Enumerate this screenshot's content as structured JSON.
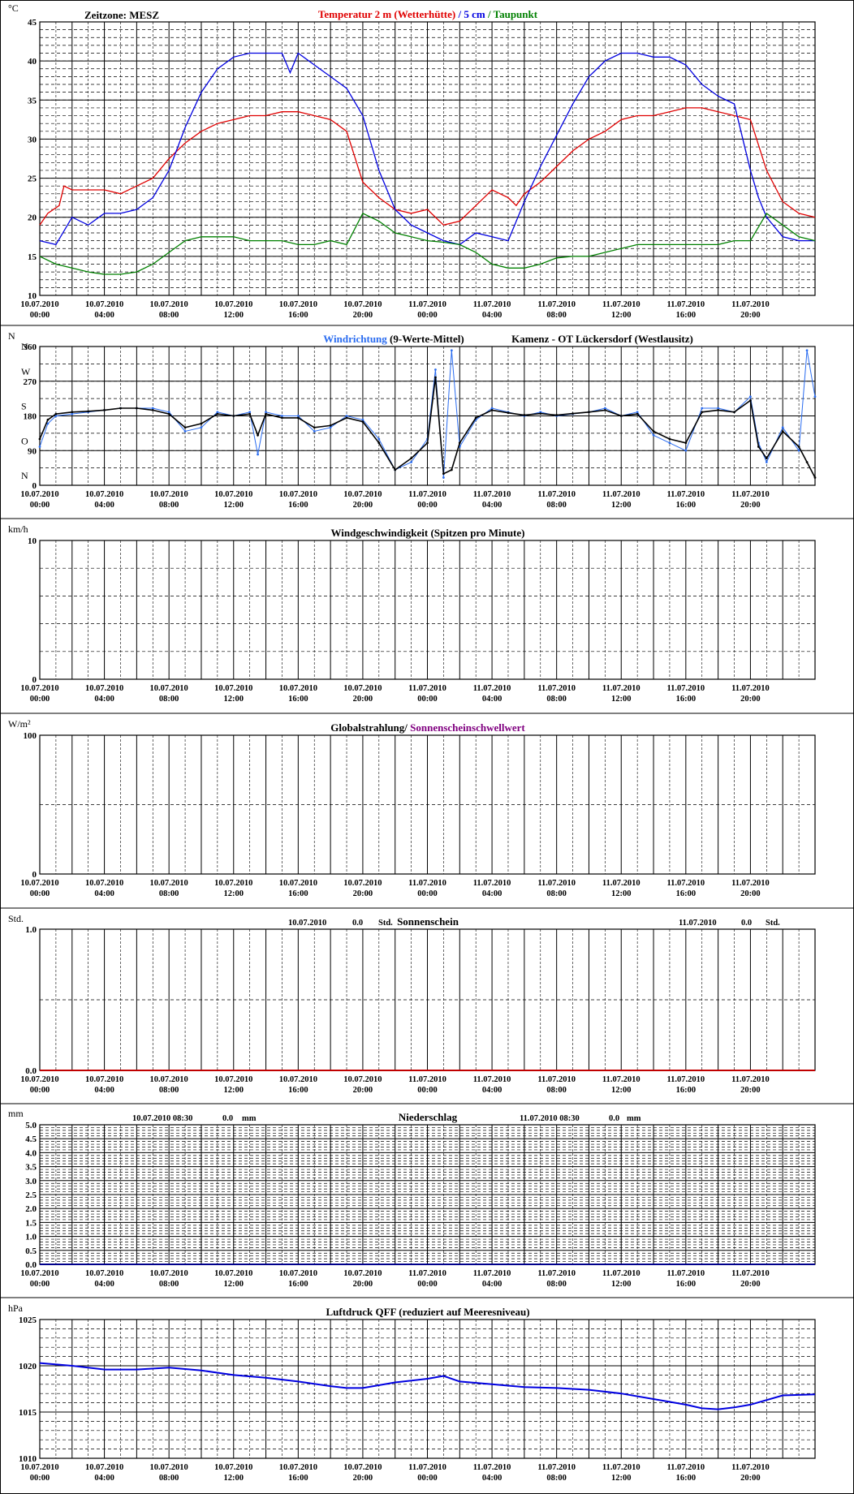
{
  "x_ticks": [
    [
      "10.07.2010",
      "00:00"
    ],
    [
      "10.07.2010",
      "04:00"
    ],
    [
      "10.07.2010",
      "08:00"
    ],
    [
      "10.07.2010",
      "12:00"
    ],
    [
      "10.07.2010",
      "16:00"
    ],
    [
      "10.07.2010",
      "20:00"
    ],
    [
      "11.07.2010",
      "00:00"
    ],
    [
      "11.07.2010",
      "04:00"
    ],
    [
      "11.07.2010",
      "08:00"
    ],
    [
      "11.07.2010",
      "12:00"
    ],
    [
      "11.07.2010",
      "16:00"
    ],
    [
      "11.07.2010",
      "20:00"
    ]
  ],
  "colors": {
    "red": "#e00000",
    "blue": "#0000e0",
    "green": "#008000",
    "lightblue": "#2a6cf0",
    "purple": "#800080",
    "darkred": "#c00000"
  },
  "chart_data": [
    {
      "type": "line",
      "unit": "°C",
      "timezone": "Zeitzone: MESZ",
      "title_parts": [
        {
          "text": "Temperatur 2 m (Wetterhütte)",
          "color": "#e00000"
        },
        {
          "text": " / ",
          "color": "#0000e0"
        },
        {
          "text": "5 cm",
          "color": "#0000e0"
        },
        {
          "text": " / ",
          "color": "#008000"
        },
        {
          "text": "Taupunkt",
          "color": "#008000"
        }
      ],
      "ylim": [
        10,
        45
      ],
      "yticks": [
        "10",
        "15",
        "20",
        "25",
        "30",
        "35",
        "40",
        "45"
      ],
      "x_hours": [
        0,
        48
      ],
      "series": [
        {
          "name": "Temperatur 2 m (Wetterhütte)",
          "color": "#e00000",
          "x": [
            0,
            0.5,
            1.2,
            1.5,
            2,
            3,
            4,
            5,
            6,
            7,
            8,
            9,
            10,
            11,
            12,
            13,
            14,
            15,
            16,
            17,
            18,
            19,
            20,
            21,
            22,
            23,
            24,
            25,
            26,
            27,
            28,
            29,
            29.5,
            30,
            31,
            32,
            33,
            34,
            35,
            36,
            37,
            38,
            39,
            40,
            41,
            42,
            43,
            44,
            45,
            46,
            47,
            48
          ],
          "y": [
            19,
            20.5,
            21.5,
            24,
            23.5,
            23.5,
            23.5,
            23,
            24,
            25,
            27.5,
            29.5,
            31,
            32,
            32.5,
            33,
            33,
            33.5,
            33.5,
            33,
            32.5,
            31,
            24.5,
            22.5,
            21,
            20.5,
            21,
            19,
            19.5,
            21.5,
            23.5,
            22.5,
            21.5,
            23,
            24.5,
            26.5,
            28.5,
            30,
            31,
            32.5,
            33,
            33,
            33.5,
            34,
            34,
            33.5,
            33,
            32.5,
            26,
            22,
            20.5,
            20
          ]
        },
        {
          "name": "5 cm",
          "color": "#0000e0",
          "x": [
            0,
            1,
            2,
            3,
            4,
            5,
            6,
            7,
            8,
            9,
            10,
            11,
            12,
            13,
            14,
            15,
            15.5,
            16,
            17,
            18,
            19,
            20,
            21,
            22,
            23,
            24,
            25,
            26,
            27,
            28,
            29,
            30,
            31,
            32,
            33,
            34,
            35,
            36,
            37,
            38,
            39,
            40,
            41,
            42,
            43,
            44,
            44.5,
            45,
            46,
            47,
            48
          ],
          "y": [
            17,
            16.5,
            20,
            19,
            20.5,
            20.5,
            21,
            22.5,
            26,
            31.5,
            36,
            39,
            40.5,
            41,
            41,
            41,
            38.5,
            41,
            39.5,
            38,
            36.5,
            33,
            26,
            21,
            19,
            18,
            17,
            16.5,
            18,
            17.5,
            17,
            22,
            26.5,
            30.5,
            34.5,
            38,
            40,
            41,
            41,
            40.5,
            40.5,
            39.5,
            37,
            35.5,
            34.5,
            26,
            22.5,
            20,
            17.5,
            17,
            17
          ]
        },
        {
          "name": "Taupunkt",
          "color": "#008000",
          "x": [
            0,
            1,
            2,
            3,
            4,
            5,
            6,
            7,
            8,
            9,
            10,
            11,
            12,
            13,
            14,
            15,
            16,
            17,
            18,
            19,
            20,
            21,
            22,
            23,
            24,
            25,
            26,
            27,
            28,
            29,
            30,
            31,
            32,
            33,
            34,
            35,
            36,
            37,
            38,
            39,
            40,
            41,
            42,
            43,
            44,
            45,
            46,
            47,
            48
          ],
          "y": [
            15,
            14,
            13.5,
            13,
            12.7,
            12.7,
            13,
            14,
            15.5,
            17,
            17.5,
            17.5,
            17.5,
            17,
            17,
            17,
            16.5,
            16.5,
            17,
            16.5,
            20.5,
            19.5,
            18,
            17.5,
            17,
            16.8,
            16.5,
            15.5,
            14,
            13.5,
            13.5,
            14,
            14.8,
            15,
            15,
            15.5,
            16,
            16.5,
            16.5,
            16.5,
            16.5,
            16.5,
            16.5,
            17,
            17,
            20.5,
            19,
            17.5,
            17
          ]
        }
      ]
    },
    {
      "type": "scatter",
      "unit": "N",
      "title_parts": [
        {
          "text": "Windrichtung",
          "color": "#2a6cf0"
        },
        {
          "text": " (9-Werte-Mittel)",
          "color": "#000000"
        }
      ],
      "station": "Kamenz - OT Lückersdorf (Westlausitz)",
      "ylim": [
        0,
        360
      ],
      "yticks": [
        "0",
        "90",
        "180",
        "270",
        "360"
      ],
      "dir_labels": [
        "N",
        "O",
        "S",
        "W",
        "N"
      ],
      "x_hours": [
        0,
        48
      ],
      "series": [
        {
          "name": "Windrichtung",
          "color": "#2a6cf0",
          "x": [
            0,
            0.5,
            1,
            2,
            3,
            4,
            5,
            6,
            7,
            8,
            9,
            10,
            11,
            12,
            13,
            13.5,
            14,
            15,
            16,
            17,
            18,
            19,
            20,
            21,
            22,
            23,
            24,
            24.5,
            25,
            25.5,
            26,
            27,
            28,
            29,
            30,
            31,
            32,
            33,
            34,
            35,
            36,
            37,
            38,
            39,
            40,
            41,
            42,
            43,
            44,
            44.5,
            45,
            46,
            47,
            47.5,
            48
          ],
          "y": [
            100,
            160,
            180,
            185,
            190,
            195,
            200,
            200,
            200,
            190,
            140,
            150,
            190,
            180,
            190,
            80,
            190,
            180,
            180,
            140,
            150,
            180,
            170,
            120,
            40,
            60,
            120,
            300,
            20,
            350,
            100,
            170,
            200,
            190,
            180,
            190,
            180,
            185,
            190,
            200,
            180,
            190,
            130,
            110,
            90,
            200,
            200,
            190,
            230,
            110,
            60,
            150,
            90,
            350,
            230
          ]
        },
        {
          "name": "9-Werte-Mittel",
          "color": "#000000",
          "x": [
            0,
            0.5,
            1,
            2,
            3,
            4,
            5,
            6,
            7,
            8,
            9,
            10,
            11,
            12,
            13,
            13.5,
            14,
            15,
            16,
            17,
            18,
            19,
            20,
            21,
            22,
            23,
            24,
            24.5,
            25,
            25.5,
            26,
            27,
            28,
            29,
            30,
            31,
            32,
            33,
            34,
            35,
            36,
            37,
            38,
            39,
            40,
            41,
            42,
            43,
            44,
            44.5,
            45,
            46,
            47,
            47.5,
            48
          ],
          "y": [
            120,
            170,
            185,
            190,
            192,
            195,
            200,
            200,
            195,
            185,
            150,
            160,
            185,
            180,
            185,
            130,
            185,
            175,
            175,
            150,
            155,
            175,
            165,
            110,
            40,
            70,
            110,
            280,
            30,
            40,
            110,
            175,
            195,
            188,
            182,
            186,
            182,
            186,
            190,
            195,
            180,
            185,
            140,
            120,
            110,
            190,
            195,
            190,
            220,
            100,
            70,
            140,
            100,
            60,
            20
          ]
        }
      ]
    },
    {
      "type": "bar",
      "unit": "km/h",
      "title_parts": [
        {
          "text": "Windgeschwindigkeit (Spitzen pro Minute)",
          "color": "#000000"
        }
      ],
      "ylim": [
        0,
        10
      ],
      "yticks": [
        "0",
        "10"
      ],
      "x_hours": [
        0,
        48
      ],
      "series": []
    },
    {
      "type": "area",
      "unit": "W/m²",
      "title_parts": [
        {
          "text": "Globalstrahlung/ ",
          "color": "#000000"
        },
        {
          "text": "Sonnenscheinschwellwert",
          "color": "#800080"
        }
      ],
      "ylim": [
        0,
        100
      ],
      "yticks": [
        "0",
        "100"
      ],
      "x_hours": [
        0,
        48
      ],
      "series": []
    },
    {
      "type": "bar",
      "unit": "Std.",
      "title_parts": [
        {
          "text": "Sonnenschein",
          "color": "#000000"
        }
      ],
      "daily": [
        {
          "date": "10.07.2010",
          "value": "0.0",
          "unit": "Std."
        },
        {
          "date": "11.07.2010",
          "value": "0.0",
          "unit": "Std."
        }
      ],
      "ylim": [
        0,
        1
      ],
      "yticks": [
        "0.0",
        "1.0"
      ],
      "x_hours": [
        0,
        48
      ],
      "series": [
        {
          "name": "Sonnenschein",
          "color": "#c00000",
          "x": [
            0,
            48
          ],
          "y": [
            0,
            0
          ]
        }
      ]
    },
    {
      "type": "bar",
      "unit": "mm",
      "title_parts": [
        {
          "text": "Niederschlag",
          "color": "#000000"
        }
      ],
      "daily": [
        {
          "date": "10.07.2010 08:30",
          "value": "0.0",
          "unit": "mm"
        },
        {
          "date": "11.07.2010 08:30",
          "value": "0.0",
          "unit": "mm"
        }
      ],
      "ylim": [
        0,
        5
      ],
      "yticks": [
        "0.0",
        "0.5",
        "1.0",
        "1.5",
        "2.0",
        "2.5",
        "3.0",
        "3.5",
        "4.0",
        "4.5",
        "5.0"
      ],
      "x_hours": [
        0,
        48
      ],
      "series": [
        {
          "name": "Niederschlag",
          "color": "#00008b",
          "x": [
            0,
            48
          ],
          "y": [
            0,
            0
          ]
        }
      ]
    },
    {
      "type": "line",
      "unit": "hPa",
      "title_parts": [
        {
          "text": "Luftdruck QFF (reduziert auf Meeresniveau)",
          "color": "#000000"
        }
      ],
      "ylim": [
        1010,
        1025
      ],
      "yticks": [
        "1010",
        "1015",
        "1020",
        "1025"
      ],
      "x_hours": [
        0,
        48
      ],
      "series": [
        {
          "name": "Luftdruck QFF",
          "color": "#0000e0",
          "x": [
            0,
            2,
            4,
            6,
            8,
            10,
            12,
            14,
            16,
            18,
            19,
            20,
            22,
            24,
            25,
            26,
            28,
            30,
            32,
            34,
            36,
            38,
            40,
            41,
            42,
            43,
            44,
            46,
            48
          ],
          "y": [
            1020.3,
            1020,
            1019.6,
            1019.6,
            1019.8,
            1019.5,
            1019,
            1018.7,
            1018.3,
            1017.8,
            1017.6,
            1017.6,
            1018.2,
            1018.6,
            1018.9,
            1018.3,
            1018,
            1017.7,
            1017.6,
            1017.4,
            1017,
            1016.4,
            1015.8,
            1015.4,
            1015.3,
            1015.5,
            1015.8,
            1016.8,
            1016.9
          ]
        }
      ]
    }
  ]
}
